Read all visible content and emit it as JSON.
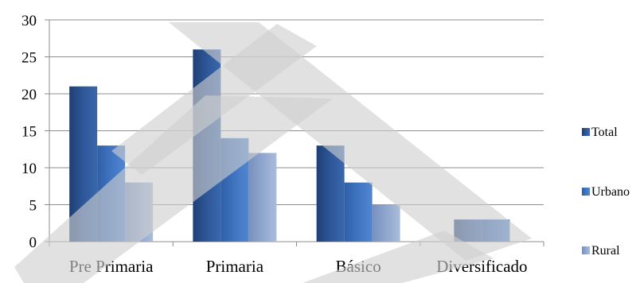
{
  "chart_data": {
    "type": "bar",
    "categories": [
      "Pre Primaria",
      "Primaria",
      "Básico",
      "Diversificado"
    ],
    "series": [
      {
        "name": "Total",
        "values": [
          21,
          26,
          13,
          3
        ],
        "color": "#2c5596"
      },
      {
        "name": "Urbano",
        "values": [
          13,
          14,
          8,
          3
        ],
        "color": "#3f73bf"
      },
      {
        "name": "Rural",
        "values": [
          8,
          12,
          5,
          null
        ],
        "color": "#8da4cc"
      }
    ],
    "yticks": [
      "0",
      "5",
      "10",
      "15",
      "20",
      "25",
      "30"
    ],
    "ylim": [
      0,
      30
    ],
    "grid": true,
    "legend": "right",
    "overlay": {
      "shape": "diagonal-stripes",
      "color": "#cfcfcf"
    }
  }
}
